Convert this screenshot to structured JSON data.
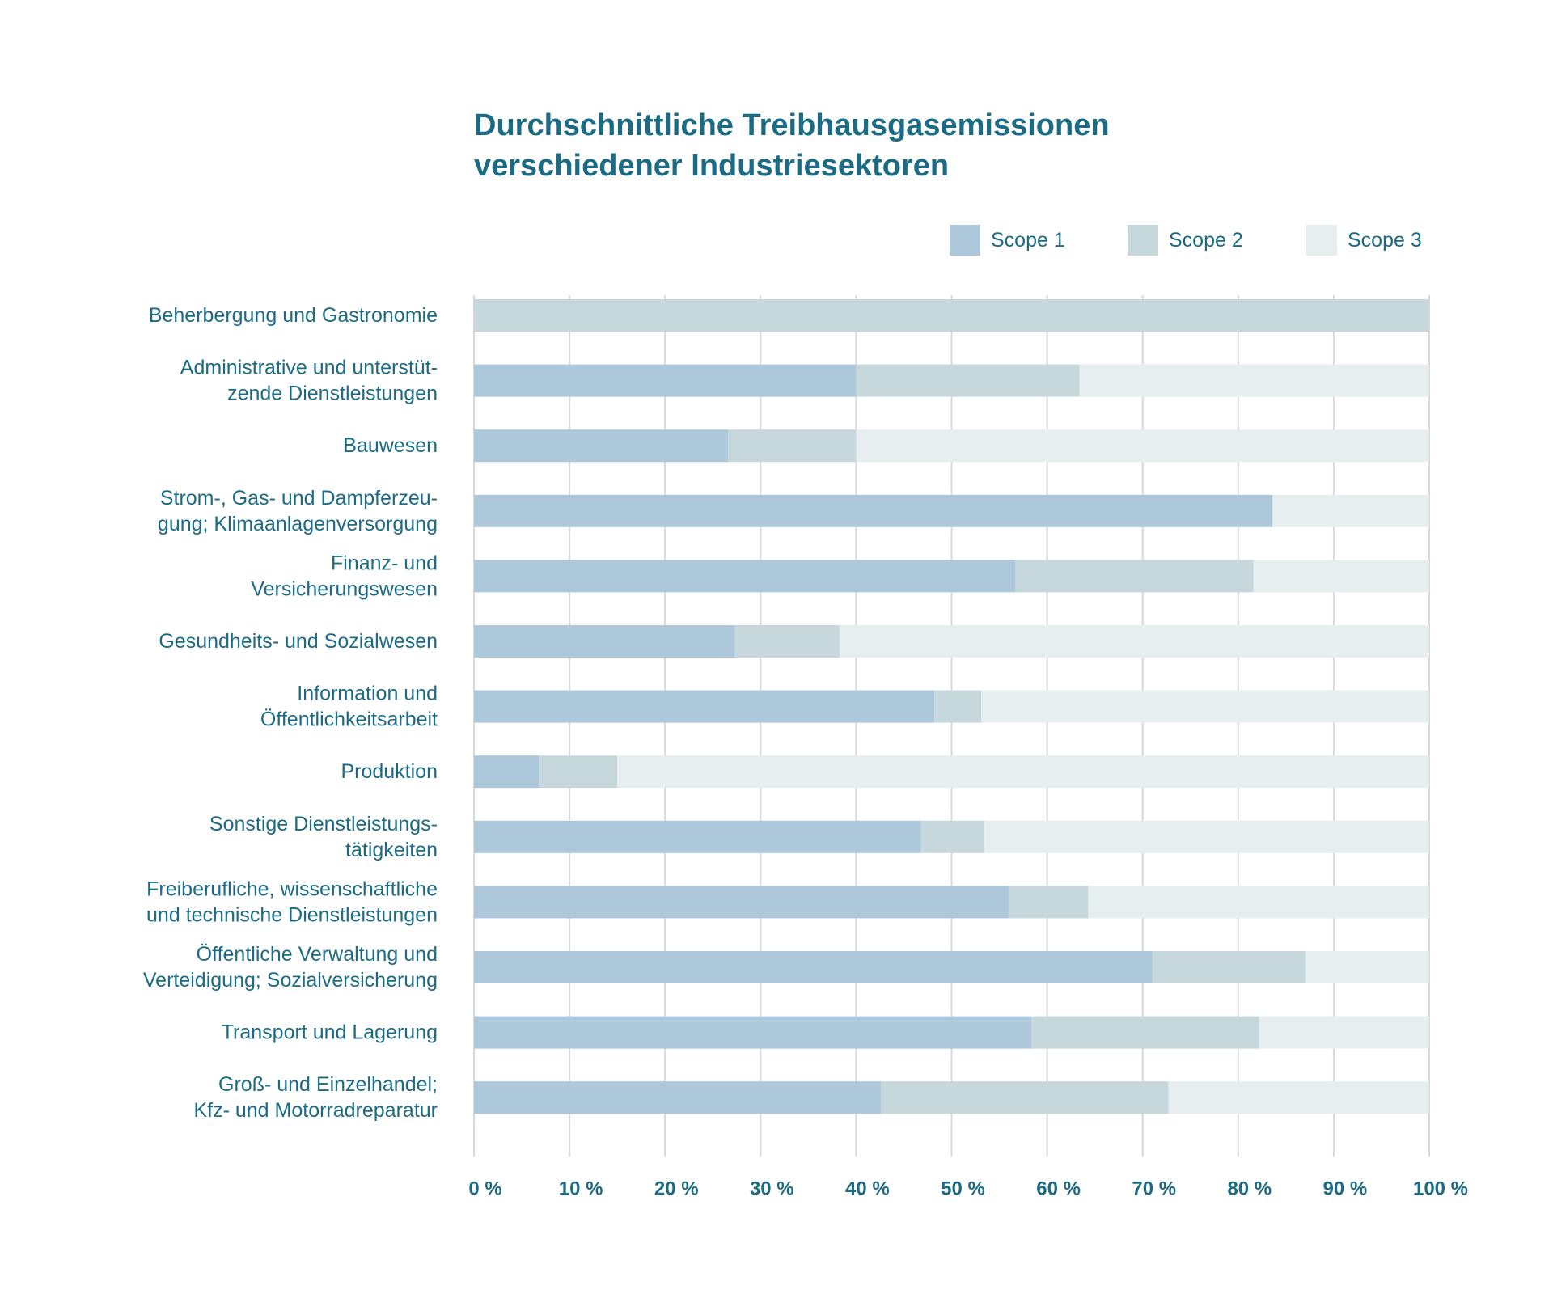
{
  "title_lines": [
    "Durchschnittliche Treibhausgasemissionen",
    "verschiedener Industriesektoren"
  ],
  "colors": {
    "scope1": "#adc8da",
    "scope2": "#c6d8dc",
    "scope3": "#e6eeef",
    "text": "#1c6b84",
    "grid": "#d8d8d8"
  },
  "chart_data": {
    "type": "bar",
    "orientation": "horizontal",
    "stacked": true,
    "title": "Durchschnittliche Treibhausgasemissionen verschiedener Industriesektoren",
    "xlabel": "",
    "ylabel": "",
    "xlim": [
      0,
      100
    ],
    "x_ticks": [
      "0 %",
      "10 %",
      "20 %",
      "30 %",
      "40 %",
      "50 %",
      "60 %",
      "70 %",
      "80 %",
      "90 %",
      "100 %"
    ],
    "grid": "vertical",
    "legend_position": "top-right",
    "categories": [
      "Beherbergung und Gastronomie",
      "Administrative und unterstüt-\nzende Dienstleistungen",
      "Bauwesen",
      "Strom-, Gas- und Dampferzeu-\ngung; Klimaanlagenversorgung",
      "Finanz- und\nVersicherungswesen",
      "Gesundheits- und Sozialwesen",
      "Information und\nÖffentlichkeitsarbeit",
      "Produktion",
      "Sonstige Dienstleistungs-\ntätigkeiten",
      "Freiberufliche, wissenschaftliche\nund technische Dienstleistungen",
      "Öffentliche Verwaltung und\nVerteidigung; Sozialversicherung",
      "Transport und Lagerung",
      "Groß- und Einzelhandel;\nKfz- und Motorradreparatur"
    ],
    "series": [
      {
        "name": "Scope 1",
        "values": [
          0,
          40,
          26.6,
          83.6,
          56.7,
          27.3,
          48.2,
          6.8,
          46.8,
          56,
          71,
          58.4,
          42.6
        ]
      },
      {
        "name": "Scope 2",
        "values": [
          100,
          23.4,
          13.4,
          0,
          24.9,
          11,
          4.9,
          8.2,
          6.6,
          8.3,
          16.1,
          23.8,
          30.1
        ]
      },
      {
        "name": "Scope 3",
        "values": [
          0,
          36.6,
          60,
          16.4,
          18.4,
          61.7,
          46.9,
          85,
          46.6,
          35.7,
          12.9,
          17.8,
          27.3
        ]
      }
    ]
  }
}
